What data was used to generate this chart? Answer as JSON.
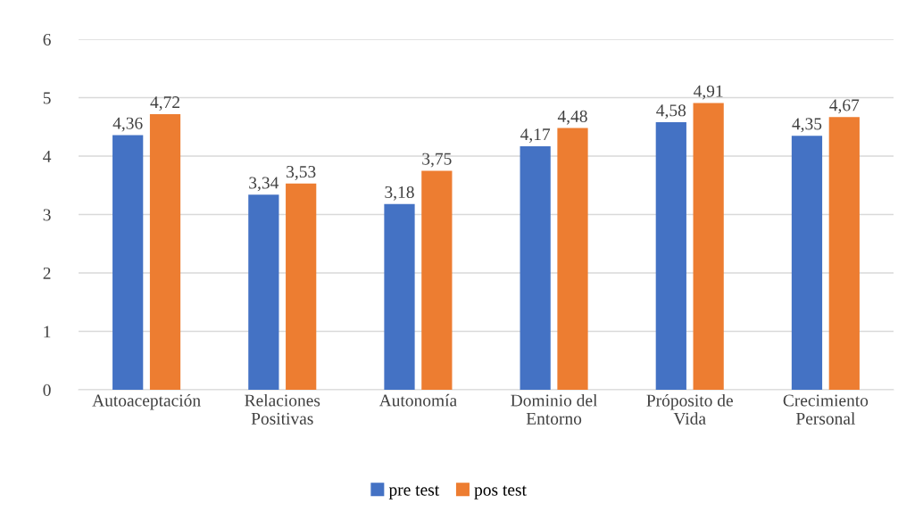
{
  "chart_data": {
    "type": "bar",
    "categories": [
      "Autoaceptación",
      "Relaciones\nPositivas",
      "Autonomía",
      "Dominio del\nEntorno",
      "Próposito de\nVida",
      "Crecimiento\nPersonal"
    ],
    "series": [
      {
        "name": "pre test",
        "color": "#4472c4",
        "values": [
          4.36,
          3.34,
          3.18,
          4.17,
          4.58,
          4.35
        ],
        "value_labels": [
          "4,36",
          "3,34",
          "3,18",
          "4,17",
          "4,58",
          "4,35"
        ]
      },
      {
        "name": "pos test",
        "color": "#ed7d31",
        "values": [
          4.72,
          3.53,
          3.75,
          4.48,
          4.91,
          4.67
        ],
        "value_labels": [
          "4,72",
          "3,53",
          "3,75",
          "4,48",
          "4,91",
          "4,67"
        ]
      }
    ],
    "ylim": [
      0,
      6
    ],
    "yticks": [
      0,
      1,
      2,
      3,
      4,
      5,
      6
    ],
    "grid": "y",
    "legend": "bottom"
  }
}
